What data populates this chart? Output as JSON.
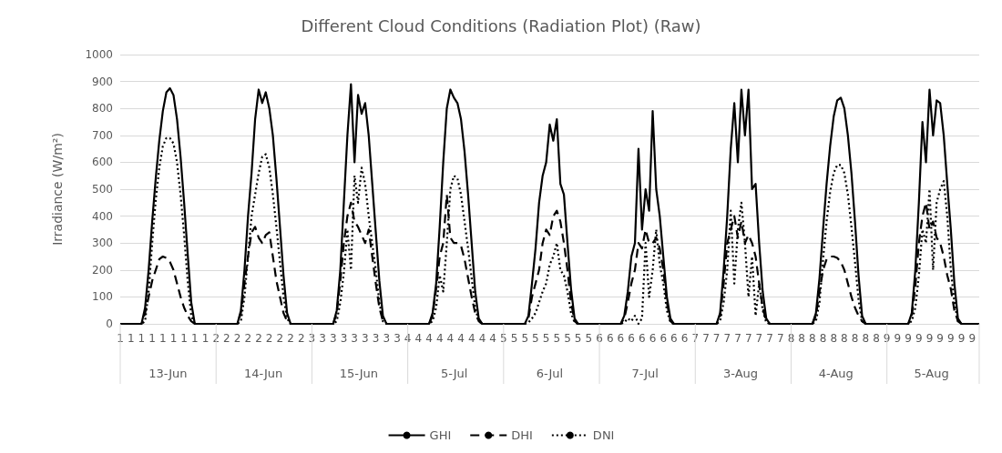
{
  "chart_data": {
    "type": "line",
    "title": "Different Cloud Conditions (Radiation Plot) (Raw)",
    "ylabel": "Irradiance (W/m²)",
    "categories": [
      "1",
      null,
      null,
      "1",
      null,
      null,
      "1",
      null,
      null,
      "1",
      null,
      null,
      "1",
      null,
      null,
      "1",
      null,
      null,
      "1",
      null,
      null,
      "1",
      null,
      null,
      "1",
      null,
      null,
      "2",
      null,
      null,
      "2",
      null,
      null,
      "2",
      null,
      null,
      "2",
      null,
      null,
      "2",
      null,
      null,
      "2",
      null,
      null,
      "2",
      null,
      null,
      "2",
      null,
      null,
      "2",
      null,
      null,
      "3",
      null,
      null,
      "3",
      null,
      null,
      "3",
      null,
      null,
      "3",
      null,
      null,
      "3",
      null,
      null,
      "3",
      null,
      null,
      "3",
      null,
      null,
      "3",
      null,
      null,
      "3",
      null,
      null,
      "4",
      null,
      null,
      "4",
      null,
      null,
      "4",
      null,
      null,
      "4",
      null,
      null,
      "4",
      null,
      null,
      "4",
      null,
      null,
      "4",
      null,
      null,
      "4",
      null,
      null,
      "4",
      null,
      null,
      "5",
      null,
      null,
      "5",
      null,
      null,
      "5",
      null,
      null,
      "5",
      null,
      null,
      "5",
      null,
      null,
      "5",
      null,
      null,
      "5",
      null,
      null,
      "5",
      null,
      null,
      "5",
      null,
      null,
      "6",
      null,
      null,
      "6",
      null,
      null,
      "6",
      null,
      null,
      "6",
      null,
      null,
      "6",
      null,
      null,
      "6",
      null,
      null,
      "6",
      null,
      null,
      "6",
      null,
      null,
      "6",
      null,
      null,
      "7",
      null,
      null,
      "7",
      null,
      null,
      "7",
      null,
      null,
      "7",
      null,
      null,
      "7",
      null,
      null,
      "7",
      null,
      null,
      "7",
      null,
      null,
      "7",
      null,
      null,
      "7",
      null,
      null,
      "8",
      null,
      null,
      "8",
      null,
      null,
      "8",
      null,
      null,
      "8",
      null,
      null,
      "8",
      null,
      null,
      "8",
      null,
      null,
      "8",
      null,
      null,
      "8",
      null,
      null,
      "8",
      null,
      null,
      "9",
      null,
      null,
      "9",
      null,
      null,
      "9",
      null,
      null,
      "9",
      null,
      null,
      "9",
      null,
      null,
      "9",
      null,
      null,
      "9",
      null,
      null,
      "9",
      null,
      null,
      "9",
      null,
      null
    ],
    "annotations": [
      "13-Jun",
      "14-Jun",
      "15-Jun",
      "5-Jul",
      "6-Jul",
      "7-Jul",
      "3-Aug",
      "4-Aug",
      "5-Aug"
    ],
    "series": [
      {
        "name": "GHI",
        "color": "#000000",
        "line_style": "solid",
        "values": [
          0,
          0,
          0,
          0,
          0,
          0,
          0,
          60,
          200,
          380,
          540,
          680,
          790,
          860,
          875,
          850,
          760,
          620,
          450,
          260,
          80,
          0,
          0,
          0,
          0,
          0,
          0,
          0,
          0,
          0,
          0,
          0,
          0,
          0,
          50,
          200,
          400,
          560,
          760,
          870,
          820,
          860,
          800,
          700,
          540,
          360,
          180,
          40,
          0,
          0,
          0,
          0,
          0,
          0,
          0,
          0,
          0,
          0,
          0,
          0,
          0,
          50,
          200,
          450,
          700,
          890,
          600,
          850,
          780,
          820,
          700,
          520,
          340,
          160,
          30,
          0,
          0,
          0,
          0,
          0,
          0,
          0,
          0,
          0,
          0,
          0,
          0,
          0,
          40,
          150,
          360,
          600,
          800,
          870,
          840,
          820,
          760,
          640,
          480,
          300,
          120,
          20,
          0,
          0,
          0,
          0,
          0,
          0,
          0,
          0,
          0,
          0,
          0,
          0,
          0,
          30,
          150,
          280,
          450,
          550,
          600,
          740,
          680,
          760,
          520,
          480,
          300,
          130,
          20,
          0,
          0,
          0,
          0,
          0,
          0,
          0,
          0,
          0,
          0,
          0,
          0,
          0,
          30,
          120,
          250,
          300,
          650,
          350,
          500,
          420,
          790,
          500,
          400,
          250,
          100,
          20,
          0,
          0,
          0,
          0,
          0,
          0,
          0,
          0,
          0,
          0,
          0,
          0,
          0,
          40,
          200,
          400,
          650,
          820,
          600,
          870,
          700,
          870,
          500,
          520,
          300,
          120,
          20,
          0,
          0,
          0,
          0,
          0,
          0,
          0,
          0,
          0,
          0,
          0,
          0,
          0,
          40,
          170,
          350,
          520,
          660,
          770,
          830,
          840,
          800,
          700,
          560,
          380,
          180,
          30,
          0,
          0,
          0,
          0,
          0,
          0,
          0,
          0,
          0,
          0,
          0,
          0,
          0,
          40,
          200,
          450,
          750,
          600,
          870,
          700,
          830,
          820,
          700,
          520,
          350,
          150,
          20,
          0,
          0,
          0,
          0,
          0,
          0
        ]
      },
      {
        "name": "DHI",
        "color": "#000000",
        "line_style": "dashed",
        "values": [
          0,
          0,
          0,
          0,
          0,
          0,
          0,
          40,
          100,
          160,
          200,
          240,
          250,
          245,
          230,
          200,
          150,
          100,
          60,
          30,
          10,
          0,
          0,
          0,
          0,
          0,
          0,
          0,
          0,
          0,
          0,
          0,
          0,
          0,
          40,
          150,
          250,
          340,
          360,
          320,
          300,
          330,
          340,
          250,
          160,
          100,
          40,
          10,
          0,
          0,
          0,
          0,
          0,
          0,
          0,
          0,
          0,
          0,
          0,
          0,
          0,
          40,
          160,
          300,
          400,
          450,
          380,
          360,
          330,
          300,
          350,
          250,
          150,
          60,
          10,
          0,
          0,
          0,
          0,
          0,
          0,
          0,
          0,
          0,
          0,
          0,
          0,
          0,
          30,
          130,
          250,
          300,
          480,
          320,
          300,
          300,
          290,
          240,
          170,
          100,
          40,
          10,
          0,
          0,
          0,
          0,
          0,
          0,
          0,
          0,
          0,
          0,
          0,
          0,
          0,
          20,
          100,
          150,
          200,
          300,
          350,
          330,
          400,
          420,
          380,
          300,
          200,
          80,
          10,
          0,
          0,
          0,
          0,
          0,
          0,
          0,
          0,
          0,
          0,
          0,
          0,
          0,
          20,
          80,
          150,
          200,
          300,
          280,
          350,
          300,
          300,
          320,
          280,
          200,
          80,
          10,
          0,
          0,
          0,
          0,
          0,
          0,
          0,
          0,
          0,
          0,
          0,
          0,
          0,
          30,
          150,
          300,
          350,
          400,
          320,
          380,
          300,
          330,
          300,
          250,
          150,
          60,
          10,
          0,
          0,
          0,
          0,
          0,
          0,
          0,
          0,
          0,
          0,
          0,
          0,
          0,
          30,
          120,
          200,
          240,
          250,
          250,
          245,
          230,
          200,
          150,
          100,
          60,
          30,
          10,
          0,
          0,
          0,
          0,
          0,
          0,
          0,
          0,
          0,
          0,
          0,
          0,
          0,
          30,
          140,
          300,
          400,
          450,
          350,
          380,
          320,
          300,
          250,
          180,
          130,
          50,
          10,
          0,
          0,
          0,
          0,
          0,
          0
        ]
      },
      {
        "name": "DNI",
        "color": "#000000",
        "line_style": "dotted",
        "values": [
          0,
          0,
          0,
          0,
          0,
          0,
          0,
          10,
          120,
          300,
          460,
          580,
          660,
          690,
          690,
          670,
          600,
          480,
          330,
          160,
          30,
          0,
          0,
          0,
          0,
          0,
          0,
          0,
          0,
          0,
          0,
          0,
          0,
          0,
          10,
          100,
          250,
          400,
          480,
          560,
          620,
          630,
          580,
          480,
          360,
          230,
          100,
          20,
          0,
          0,
          0,
          0,
          0,
          0,
          0,
          0,
          0,
          0,
          0,
          0,
          0,
          10,
          80,
          190,
          350,
          200,
          550,
          450,
          580,
          520,
          400,
          300,
          200,
          80,
          10,
          0,
          0,
          0,
          0,
          0,
          0,
          0,
          0,
          0,
          0,
          0,
          0,
          0,
          10,
          60,
          180,
          120,
          300,
          500,
          550,
          540,
          480,
          380,
          280,
          170,
          60,
          10,
          0,
          0,
          0,
          0,
          0,
          0,
          0,
          0,
          0,
          0,
          0,
          0,
          0,
          5,
          20,
          40,
          80,
          120,
          150,
          220,
          250,
          300,
          200,
          180,
          120,
          40,
          5,
          0,
          0,
          0,
          0,
          0,
          0,
          0,
          0,
          0,
          0,
          0,
          0,
          0,
          5,
          20,
          10,
          30,
          0,
          20,
          300,
          100,
          200,
          350,
          220,
          150,
          50,
          5,
          0,
          0,
          0,
          0,
          0,
          0,
          0,
          0,
          0,
          0,
          0,
          0,
          0,
          10,
          80,
          200,
          420,
          150,
          350,
          450,
          300,
          100,
          250,
          30,
          150,
          50,
          5,
          0,
          0,
          0,
          0,
          0,
          0,
          0,
          0,
          0,
          0,
          0,
          0,
          0,
          10,
          80,
          240,
          380,
          490,
          560,
          590,
          590,
          560,
          480,
          360,
          230,
          90,
          10,
          0,
          0,
          0,
          0,
          0,
          0,
          0,
          0,
          0,
          0,
          0,
          0,
          0,
          10,
          60,
          180,
          350,
          300,
          500,
          200,
          450,
          500,
          530,
          400,
          200,
          80,
          10,
          0,
          0,
          0,
          0,
          0,
          0
        ]
      }
    ],
    "ylim": [
      0,
      1000
    ],
    "yticks": [
      0,
      100,
      200,
      300,
      400,
      500,
      600,
      700,
      800,
      900,
      1000
    ],
    "grid": "y",
    "legend": "bottom",
    "marker": "none"
  }
}
